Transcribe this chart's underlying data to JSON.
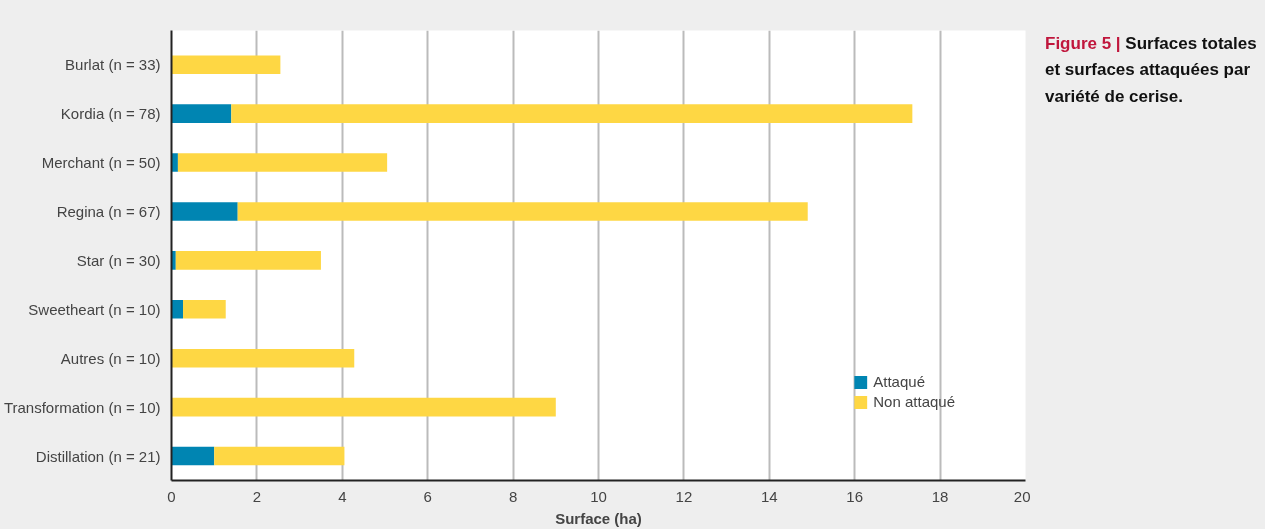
{
  "chart_data": {
    "type": "bar",
    "orientation": "horizontal",
    "stacked": true,
    "title": "Figure 5 | Surfaces totales et surfaces attaquées par variété de cerise.",
    "xlabel": "Surface (ha)",
    "categories": [
      "Burlat (n = 33)",
      "Kordia (n = 78)",
      "Merchant (n = 50)",
      "Regina (n = 67)",
      "Star (n = 30)",
      "Sweetheart (n = 10)",
      "Autres (n = 10)",
      "Transformation (n = 10)",
      "Distillation (n = 21)"
    ],
    "series": [
      {
        "name": "Attaqué",
        "color": "#0085b2",
        "values": [
          0,
          1.4,
          0.15,
          1.55,
          0.1,
          0.27,
          0,
          0,
          1.0
        ]
      },
      {
        "name": "Non attaqué",
        "color": "#fed744",
        "values": [
          2.55,
          15.95,
          4.9,
          13.35,
          3.4,
          1.0,
          4.28,
          9.0,
          3.05
        ]
      }
    ],
    "xlim": [
      0,
      20
    ],
    "xticks": [
      0,
      2,
      4,
      6,
      8,
      10,
      12,
      14,
      16,
      18,
      20
    ],
    "grid": "x",
    "legend": "bottom right"
  }
}
